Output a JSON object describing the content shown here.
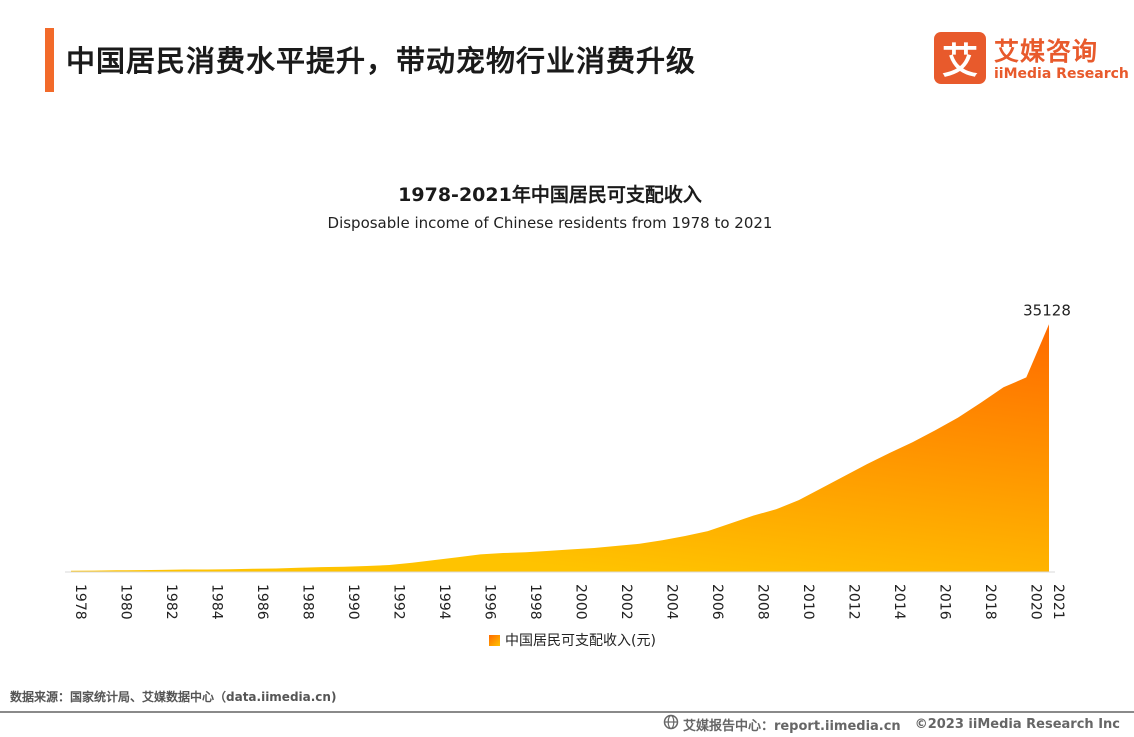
{
  "header": {
    "title": "中国居民消费水平提升，带动宠物行业消费升级"
  },
  "logo": {
    "mark": "艾",
    "cn_name": "艾媒咨询",
    "en_name": "iiMedia Research"
  },
  "colors": {
    "accent": "#f26a2a",
    "brand": "#e85a2c",
    "area_top": "#ff6a00",
    "area_bottom": "#ffc300"
  },
  "chart_data": {
    "type": "area",
    "title": "1978-2021年中国居民可支配收入",
    "subtitle": "Disposable income of Chinese residents from 1978 to 2021",
    "xlabel": "",
    "ylabel": "",
    "grid": false,
    "legend_position": "bottom",
    "x": [
      1978,
      1979,
      1980,
      1981,
      1982,
      1983,
      1984,
      1985,
      1986,
      1987,
      1988,
      1989,
      1990,
      1991,
      1992,
      1993,
      1994,
      1995,
      1996,
      1997,
      1998,
      1999,
      2000,
      2001,
      2002,
      2003,
      2004,
      2005,
      2006,
      2007,
      2008,
      2009,
      2010,
      2011,
      2012,
      2013,
      2014,
      2015,
      2016,
      2017,
      2018,
      2019,
      2020,
      2021
    ],
    "x_tick_labels": [
      "1978",
      "1980",
      "1982",
      "1984",
      "1986",
      "1988",
      "1990",
      "1992",
      "1994",
      "1996",
      "1998",
      "2000",
      "2002",
      "2004",
      "2006",
      "2008",
      "2010",
      "2012",
      "2014",
      "2016",
      "2018",
      "2020",
      "2021"
    ],
    "series": [
      {
        "name": "中国居民可支配收入(元)",
        "values": [
          170,
          200,
          240,
          270,
          300,
          350,
          360,
          400,
          450,
          500,
          600,
          700,
          750,
          850,
          1000,
          1300,
          1700,
          2100,
          2500,
          2700,
          2800,
          3000,
          3200,
          3400,
          3700,
          4000,
          4500,
          5100,
          5800,
          6900,
          8000,
          8900,
          10200,
          11900,
          13600,
          15300,
          16900,
          18400,
          20100,
          21900,
          24000,
          26200,
          27600,
          35128
        ]
      }
    ],
    "annotations": [
      {
        "x": 2021,
        "text": "35128"
      }
    ],
    "ylim": [
      0,
      40000
    ]
  },
  "source": "数据来源：国家统计局、艾媒数据中心（data.iimedia.cn)",
  "footer": {
    "center_label": "艾媒报告中心：report.iimedia.cn",
    "copyright": "©2023  iiMedia Research Inc"
  }
}
